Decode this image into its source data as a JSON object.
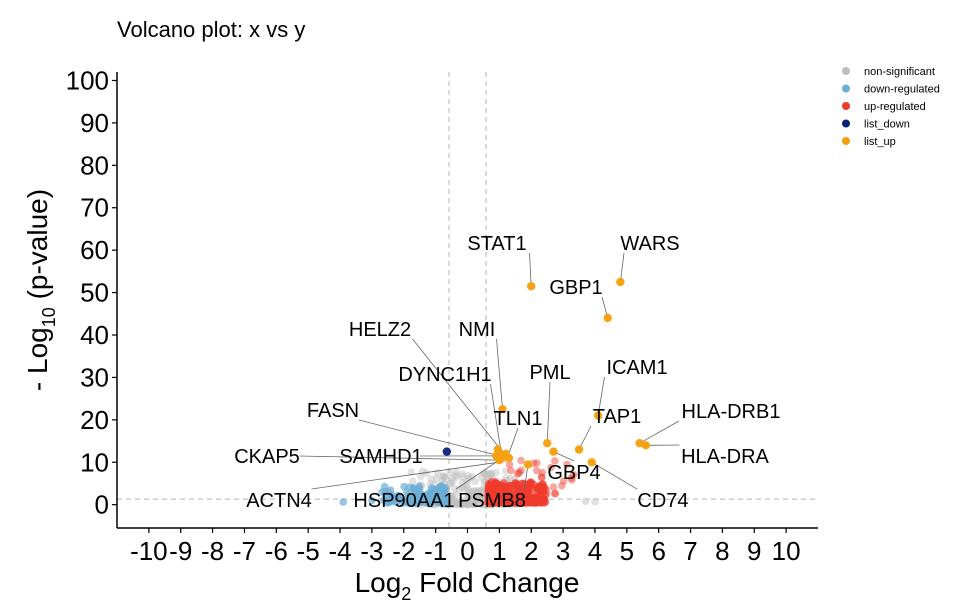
{
  "chart_data": {
    "type": "scatter",
    "title": "Volcano plot: x vs y",
    "xlabel": {
      "prefix": "Log",
      "sub": "2",
      "suffix": " Fold Change"
    },
    "ylabel": {
      "prefix": "- Log",
      "sub": "10",
      "suffix": " (p-value)"
    },
    "xlim": [
      -11,
      11
    ],
    "ylim": [
      -5.5,
      102
    ],
    "x_ticks": [
      -10,
      -9,
      -8,
      -7,
      -6,
      -5,
      -4,
      -3,
      -2,
      -1,
      0,
      1,
      2,
      3,
      4,
      5,
      6,
      7,
      8,
      9,
      10
    ],
    "y_ticks": [
      0,
      10,
      20,
      30,
      40,
      50,
      60,
      70,
      80,
      90,
      100
    ],
    "thresholds": {
      "logfc": [
        -0.58,
        0.58
      ],
      "neg_log10_p": 1.3
    },
    "grid": false,
    "legend_position": "top-right",
    "colors": {
      "non-significant": "#bebebe",
      "down-regulated": "#6baed6",
      "up-regulated": "#ef3b2c",
      "list_down": "#08217a",
      "list_up": "#f59f0a"
    },
    "legend": [
      "non-significant",
      "down-regulated",
      "up-regulated",
      "list_down",
      "list_up"
    ],
    "series": [
      {
        "name": "list_up",
        "points": [
          {
            "x": 2.0,
            "y": 51.5
          },
          {
            "x": 4.8,
            "y": 52.5
          },
          {
            "x": 4.4,
            "y": 44.0
          },
          {
            "x": 1.1,
            "y": 22.5
          },
          {
            "x": 4.1,
            "y": 21.0
          },
          {
            "x": 2.5,
            "y": 14.5
          },
          {
            "x": 5.4,
            "y": 14.5
          },
          {
            "x": 5.6,
            "y": 14.0
          },
          {
            "x": 3.5,
            "y": 13.0
          },
          {
            "x": 1.1,
            "y": 11.5
          },
          {
            "x": 1.9,
            "y": 9.5
          },
          {
            "x": 3.9,
            "y": 10.0
          },
          {
            "x": 2.7,
            "y": 12.5
          },
          {
            "x": 1.2,
            "y": 12.0
          },
          {
            "x": 0.95,
            "y": 13.0
          },
          {
            "x": 1.0,
            "y": 10.5
          },
          {
            "x": 1.3,
            "y": 11.0
          },
          {
            "x": 0.9,
            "y": 11.5
          }
        ]
      },
      {
        "name": "list_down",
        "points": [
          {
            "x": -0.65,
            "y": 12.5
          }
        ]
      }
    ],
    "labels": [
      {
        "text": "STAT1",
        "x": 2.0,
        "y": 51.5
      },
      {
        "text": "WARS",
        "x": 4.8,
        "y": 52.5
      },
      {
        "text": "GBP1",
        "x": 4.4,
        "y": 44.0
      },
      {
        "text": "HELZ2",
        "x": 1.15,
        "y": 12.0
      },
      {
        "text": "NMI",
        "x": 1.1,
        "y": 22.5
      },
      {
        "text": "DYNC1H1",
        "x": 1.05,
        "y": 12.5
      },
      {
        "text": "PML",
        "x": 2.5,
        "y": 14.5
      },
      {
        "text": "ICAM1",
        "x": 4.1,
        "y": 21.0
      },
      {
        "text": "FASN",
        "x": 1.0,
        "y": 11.5
      },
      {
        "text": "TLN1",
        "x": 1.25,
        "y": 11.0
      },
      {
        "text": "TAP1",
        "x": 3.5,
        "y": 13.0
      },
      {
        "text": "HLA-DRB1",
        "x": 5.4,
        "y": 14.5
      },
      {
        "text": "CKAP5",
        "x": 0.95,
        "y": 10.5
      },
      {
        "text": "SAMHD1",
        "x": 0.9,
        "y": 11.5
      },
      {
        "text": "HLA-DRA",
        "x": 5.6,
        "y": 14.0
      },
      {
        "text": "GBP4",
        "x": 2.7,
        "y": 12.5
      },
      {
        "text": "ACTN4",
        "x": 0.95,
        "y": 10.0
      },
      {
        "text": "HSP90AA1",
        "x": 1.0,
        "y": 10.5
      },
      {
        "text": "PSMB8",
        "x": 1.9,
        "y": 9.5
      },
      {
        "text": "CD74",
        "x": 3.9,
        "y": 10.0
      }
    ]
  }
}
